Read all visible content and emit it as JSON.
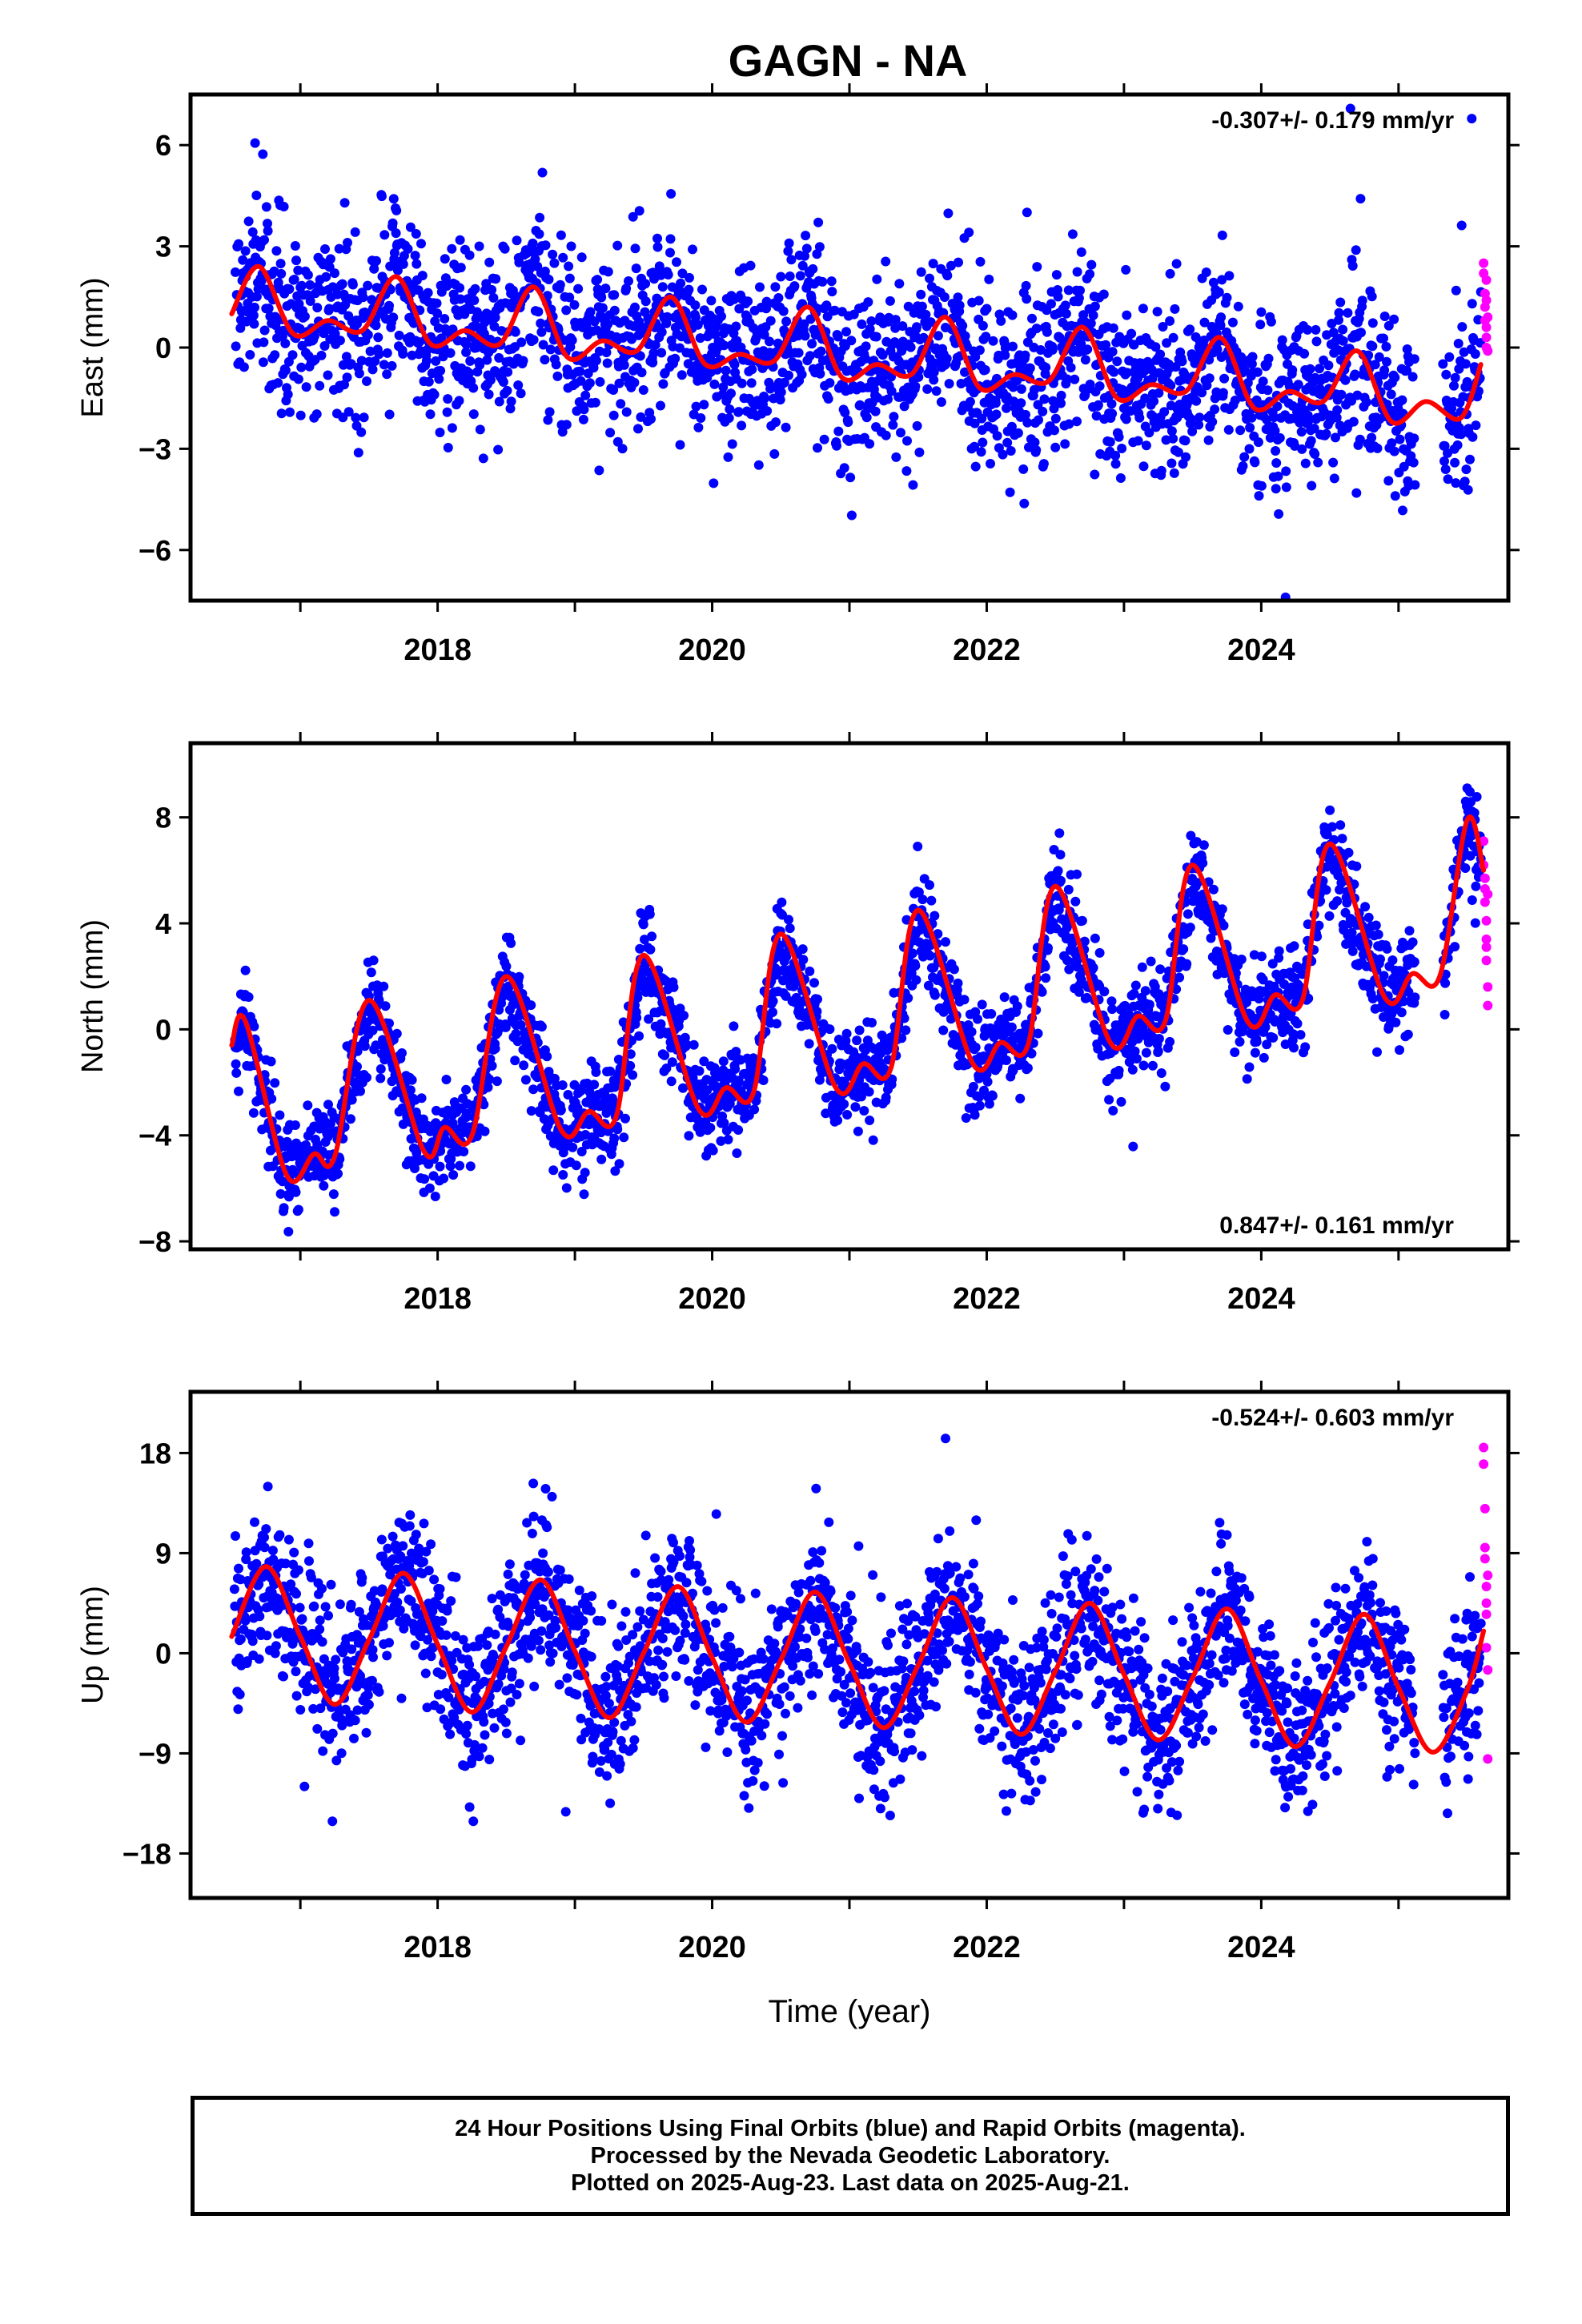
{
  "title": "GAGN - NA",
  "chart_data": [
    {
      "type": "scatter",
      "name": "east",
      "ylabel": "East (mm)",
      "xlabel": "",
      "annotation": "-0.307+/- 0.179 mm/yr",
      "xlim": [
        2016.2,
        2025.8
      ],
      "ylim": [
        -7.5,
        7.5
      ],
      "yticks": [
        -6,
        -3,
        0,
        3,
        6
      ],
      "xticks": [
        2018,
        2020,
        2022,
        2024
      ],
      "fit": {
        "x": [
          2016.5,
          2016.7,
          2016.95,
          2017.2,
          2017.45,
          2017.7,
          2017.95,
          2018.2,
          2018.45,
          2018.7,
          2018.95,
          2019.2,
          2019.45,
          2019.7,
          2019.95,
          2020.2,
          2020.45,
          2020.7,
          2020.95,
          2021.2,
          2021.45,
          2021.7,
          2021.95,
          2022.2,
          2022.45,
          2022.7,
          2022.95,
          2023.2,
          2023.45,
          2023.7,
          2023.95,
          2024.2,
          2024.45,
          2024.7,
          2024.95,
          2025.2,
          2025.45,
          2025.6
        ],
        "y": [
          1.0,
          2.4,
          0.4,
          0.8,
          0.5,
          2.1,
          0.1,
          0.5,
          0.1,
          1.8,
          -0.3,
          0.2,
          -0.1,
          1.5,
          -0.5,
          -0.2,
          -0.4,
          1.2,
          -0.9,
          -0.5,
          -0.8,
          0.9,
          -1.2,
          -0.8,
          -1.0,
          0.6,
          -1.5,
          -1.1,
          -1.3,
          0.3,
          -1.8,
          -1.3,
          -1.6,
          -0.1,
          -2.2,
          -1.6,
          -2.1,
          -0.5
        ]
      },
      "final_orbits": {
        "trend": -0.307,
        "seasonal": [
          {
            "x": 2016.7,
            "y": 2.4
          },
          {
            "x": 2017.2,
            "y": 0.8
          },
          {
            "x": 2017.7,
            "y": 2.1
          },
          {
            "x": 2018.2,
            "y": 0.5
          },
          {
            "x": 2018.7,
            "y": 1.8
          },
          {
            "x": 2019.2,
            "y": 0.2
          },
          {
            "x": 2019.7,
            "y": 1.5
          },
          {
            "x": 2020.2,
            "y": -0.2
          },
          {
            "x": 2020.7,
            "y": 1.2
          },
          {
            "x": 2021.2,
            "y": -0.5
          },
          {
            "x": 2021.7,
            "y": 0.9
          },
          {
            "x": 2022.2,
            "y": -0.8
          },
          {
            "x": 2022.7,
            "y": 0.6
          },
          {
            "x": 2023.2,
            "y": -1.1
          },
          {
            "x": 2023.7,
            "y": 0.3
          },
          {
            "x": 2024.2,
            "y": -1.3
          },
          {
            "x": 2024.7,
            "y": -0.1
          },
          {
            "x": 2025.2,
            "y": -1.6
          }
        ],
        "scatter_sd": 1.3
      },
      "rapid_orbits": {
        "x": [
          2025.62,
          2025.62,
          2025.63,
          2025.63,
          2025.63,
          2025.64,
          2025.64,
          2025.64,
          2025.64,
          2025.64,
          2025.65,
          2025.65
        ],
        "y": [
          2.5,
          2.2,
          1.6,
          1.2,
          0.8,
          0.6,
          0.3,
          0.0,
          2.0,
          1.4,
          0.9,
          -0.1
        ]
      }
    },
    {
      "type": "scatter",
      "name": "north",
      "ylabel": "North (mm)",
      "xlabel": "",
      "annotation": "0.847+/- 0.161 mm/yr",
      "xlim": [
        2016.2,
        2025.8
      ],
      "ylim": [
        -8.3,
        10.8
      ],
      "yticks": [
        -8,
        -4,
        0,
        4,
        8
      ],
      "xticks": [
        2018,
        2020,
        2022,
        2024
      ],
      "fit": {
        "x": [
          2016.5,
          2016.6,
          2016.9,
          2017.1,
          2017.25,
          2017.5,
          2017.9,
          2018.05,
          2018.25,
          2018.5,
          2018.9,
          2019.1,
          2019.3,
          2019.5,
          2019.9,
          2020.1,
          2020.3,
          2020.5,
          2020.9,
          2021.1,
          2021.3,
          2021.5,
          2021.9,
          2022.1,
          2022.3,
          2022.5,
          2022.9,
          2023.1,
          2023.3,
          2023.5,
          2023.9,
          2024.1,
          2024.3,
          2024.5,
          2024.9,
          2025.1,
          2025.3,
          2025.5,
          2025.62
        ],
        "y": [
          -0.6,
          0.3,
          -5.5,
          -4.7,
          -4.8,
          1.1,
          -4.6,
          -3.7,
          -4.0,
          2.0,
          -3.8,
          -3.1,
          -3.3,
          2.8,
          -3.0,
          -2.2,
          -2.4,
          3.6,
          -2.2,
          -1.3,
          -1.5,
          4.5,
          -1.3,
          -0.5,
          -0.6,
          5.4,
          -0.5,
          0.5,
          0.3,
          6.2,
          0.3,
          1.3,
          1.1,
          7.0,
          1.2,
          2.1,
          2.0,
          7.9,
          6.0
        ]
      },
      "final_orbits": {
        "trend": 0.847,
        "seasonal_amplitude": 3.0,
        "scatter_sd": 0.9
      },
      "rapid_orbits": {
        "x": [
          2025.62,
          2025.62,
          2025.63,
          2025.63,
          2025.63,
          2025.64,
          2025.64,
          2025.64,
          2025.64,
          2025.65,
          2025.65,
          2025.65
        ],
        "y": [
          7.1,
          6.2,
          5.7,
          5.3,
          4.8,
          4.1,
          3.4,
          3.1,
          2.6,
          1.6,
          0.9,
          5.1
        ]
      }
    },
    {
      "type": "scatter",
      "name": "up",
      "ylabel": "Up (mm)",
      "xlabel": "Time (year)",
      "annotation": "-0.524+/- 0.603 mm/yr",
      "xlim": [
        2016.2,
        2025.8
      ],
      "ylim": [
        -22,
        23.5
      ],
      "yticks": [
        -18,
        -9,
        0,
        9,
        18
      ],
      "xticks": [
        2018,
        2020,
        2022,
        2024
      ],
      "fit": {
        "x": [
          2016.5,
          2016.75,
          2017.0,
          2017.25,
          2017.5,
          2017.75,
          2018.0,
          2018.25,
          2018.5,
          2018.75,
          2019.0,
          2019.25,
          2019.5,
          2019.75,
          2020.0,
          2020.25,
          2020.5,
          2020.75,
          2021.0,
          2021.25,
          2021.5,
          2021.75,
          2022.0,
          2022.25,
          2022.5,
          2022.75,
          2023.0,
          2023.25,
          2023.5,
          2023.75,
          2024.0,
          2024.25,
          2024.5,
          2024.75,
          2025.0,
          2025.25,
          2025.5,
          2025.62
        ],
        "y": [
          1.5,
          7.8,
          1.5,
          -4.6,
          1.2,
          7.2,
          0.8,
          -5.3,
          0.6,
          6.6,
          0.2,
          -5.8,
          0.0,
          6.0,
          -0.4,
          -6.2,
          -0.6,
          5.5,
          -0.9,
          -6.7,
          -1.1,
          5.0,
          -1.4,
          -7.3,
          -1.6,
          4.5,
          -1.9,
          -7.8,
          -2.2,
          4.0,
          -2.5,
          -8.4,
          -2.7,
          3.5,
          -3.1,
          -8.9,
          -3.3,
          2.0
        ]
      },
      "final_orbits": {
        "trend": -0.524,
        "seasonal_amplitude": 6.5,
        "scatter_sd": 3.6
      },
      "rapid_orbits": {
        "x": [
          2025.62,
          2025.62,
          2025.63,
          2025.63,
          2025.63,
          2025.64,
          2025.64,
          2025.64,
          2025.64,
          2025.65,
          2025.65,
          2025.65
        ],
        "y": [
          18.5,
          17.0,
          13.0,
          9.5,
          8.5,
          6.0,
          4.5,
          3.5,
          0.5,
          -1.5,
          -9.5,
          7.0
        ]
      }
    }
  ],
  "legend": {
    "line1": "24 Hour Positions Using Final Orbits (blue) and Rapid Orbits (magenta).",
    "line2": "Processed by the Nevada Geodetic Laboratory.",
    "line3": "Plotted on 2025-Aug-23. Last data on 2025-Aug-21."
  },
  "colors": {
    "final": "#0000ff",
    "rapid": "#ff00ff",
    "fit": "#ff0000",
    "axis": "#000000"
  }
}
